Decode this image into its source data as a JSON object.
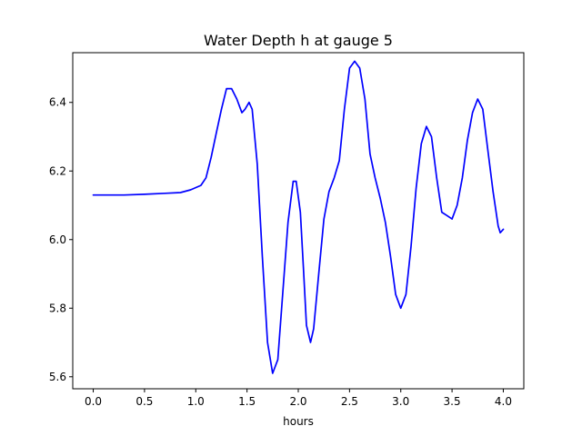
{
  "chart_data": {
    "type": "line",
    "title": "Water Depth h at gauge 5",
    "xlabel": "hours",
    "ylabel": "",
    "xlim": [
      -0.2,
      4.2
    ],
    "ylim": [
      5.565,
      6.545
    ],
    "grid": false,
    "x_ticks": [
      {
        "value": 0.0,
        "label": "0.0"
      },
      {
        "value": 0.5,
        "label": "0.5"
      },
      {
        "value": 1.0,
        "label": "1.0"
      },
      {
        "value": 1.5,
        "label": "1.5"
      },
      {
        "value": 2.0,
        "label": "2.0"
      },
      {
        "value": 2.5,
        "label": "2.5"
      },
      {
        "value": 3.0,
        "label": "3.0"
      },
      {
        "value": 3.5,
        "label": "3.5"
      },
      {
        "value": 4.0,
        "label": "4.0"
      }
    ],
    "y_ticks": [
      {
        "value": 5.6,
        "label": "5.6"
      },
      {
        "value": 5.8,
        "label": "5.8"
      },
      {
        "value": 6.0,
        "label": "6.0"
      },
      {
        "value": 6.2,
        "label": "6.2"
      },
      {
        "value": 6.4,
        "label": "6.4"
      }
    ],
    "series": [
      {
        "color": "#0000ff",
        "x": [
          0.0,
          0.3,
          0.5,
          0.7,
          0.85,
          0.95,
          1.05,
          1.1,
          1.15,
          1.2,
          1.25,
          1.3,
          1.35,
          1.4,
          1.45,
          1.48,
          1.52,
          1.55,
          1.6,
          1.65,
          1.7,
          1.75,
          1.8,
          1.85,
          1.9,
          1.95,
          1.98,
          2.02,
          2.05,
          2.08,
          2.12,
          2.15,
          2.2,
          2.25,
          2.3,
          2.35,
          2.4,
          2.45,
          2.5,
          2.55,
          2.6,
          2.65,
          2.7,
          2.75,
          2.8,
          2.85,
          2.9,
          2.95,
          3.0,
          3.05,
          3.1,
          3.15,
          3.2,
          3.25,
          3.3,
          3.35,
          3.4,
          3.45,
          3.5,
          3.55,
          3.6,
          3.65,
          3.7,
          3.75,
          3.8,
          3.85,
          3.9,
          3.95,
          3.97,
          4.0
        ],
        "y": [
          6.13,
          6.13,
          6.132,
          6.135,
          6.137,
          6.145,
          6.158,
          6.18,
          6.24,
          6.31,
          6.38,
          6.44,
          6.44,
          6.41,
          6.37,
          6.38,
          6.4,
          6.38,
          6.22,
          5.95,
          5.7,
          5.61,
          5.65,
          5.85,
          6.05,
          6.17,
          6.17,
          6.08,
          5.92,
          5.75,
          5.7,
          5.74,
          5.9,
          6.06,
          6.14,
          6.18,
          6.23,
          6.38,
          6.5,
          6.52,
          6.5,
          6.41,
          6.25,
          6.18,
          6.12,
          6.05,
          5.95,
          5.84,
          5.8,
          5.84,
          5.98,
          6.15,
          6.28,
          6.33,
          6.3,
          6.18,
          6.08,
          6.07,
          6.06,
          6.1,
          6.18,
          6.29,
          6.37,
          6.41,
          6.38,
          6.26,
          6.14,
          6.04,
          6.02,
          6.03
        ]
      }
    ]
  }
}
